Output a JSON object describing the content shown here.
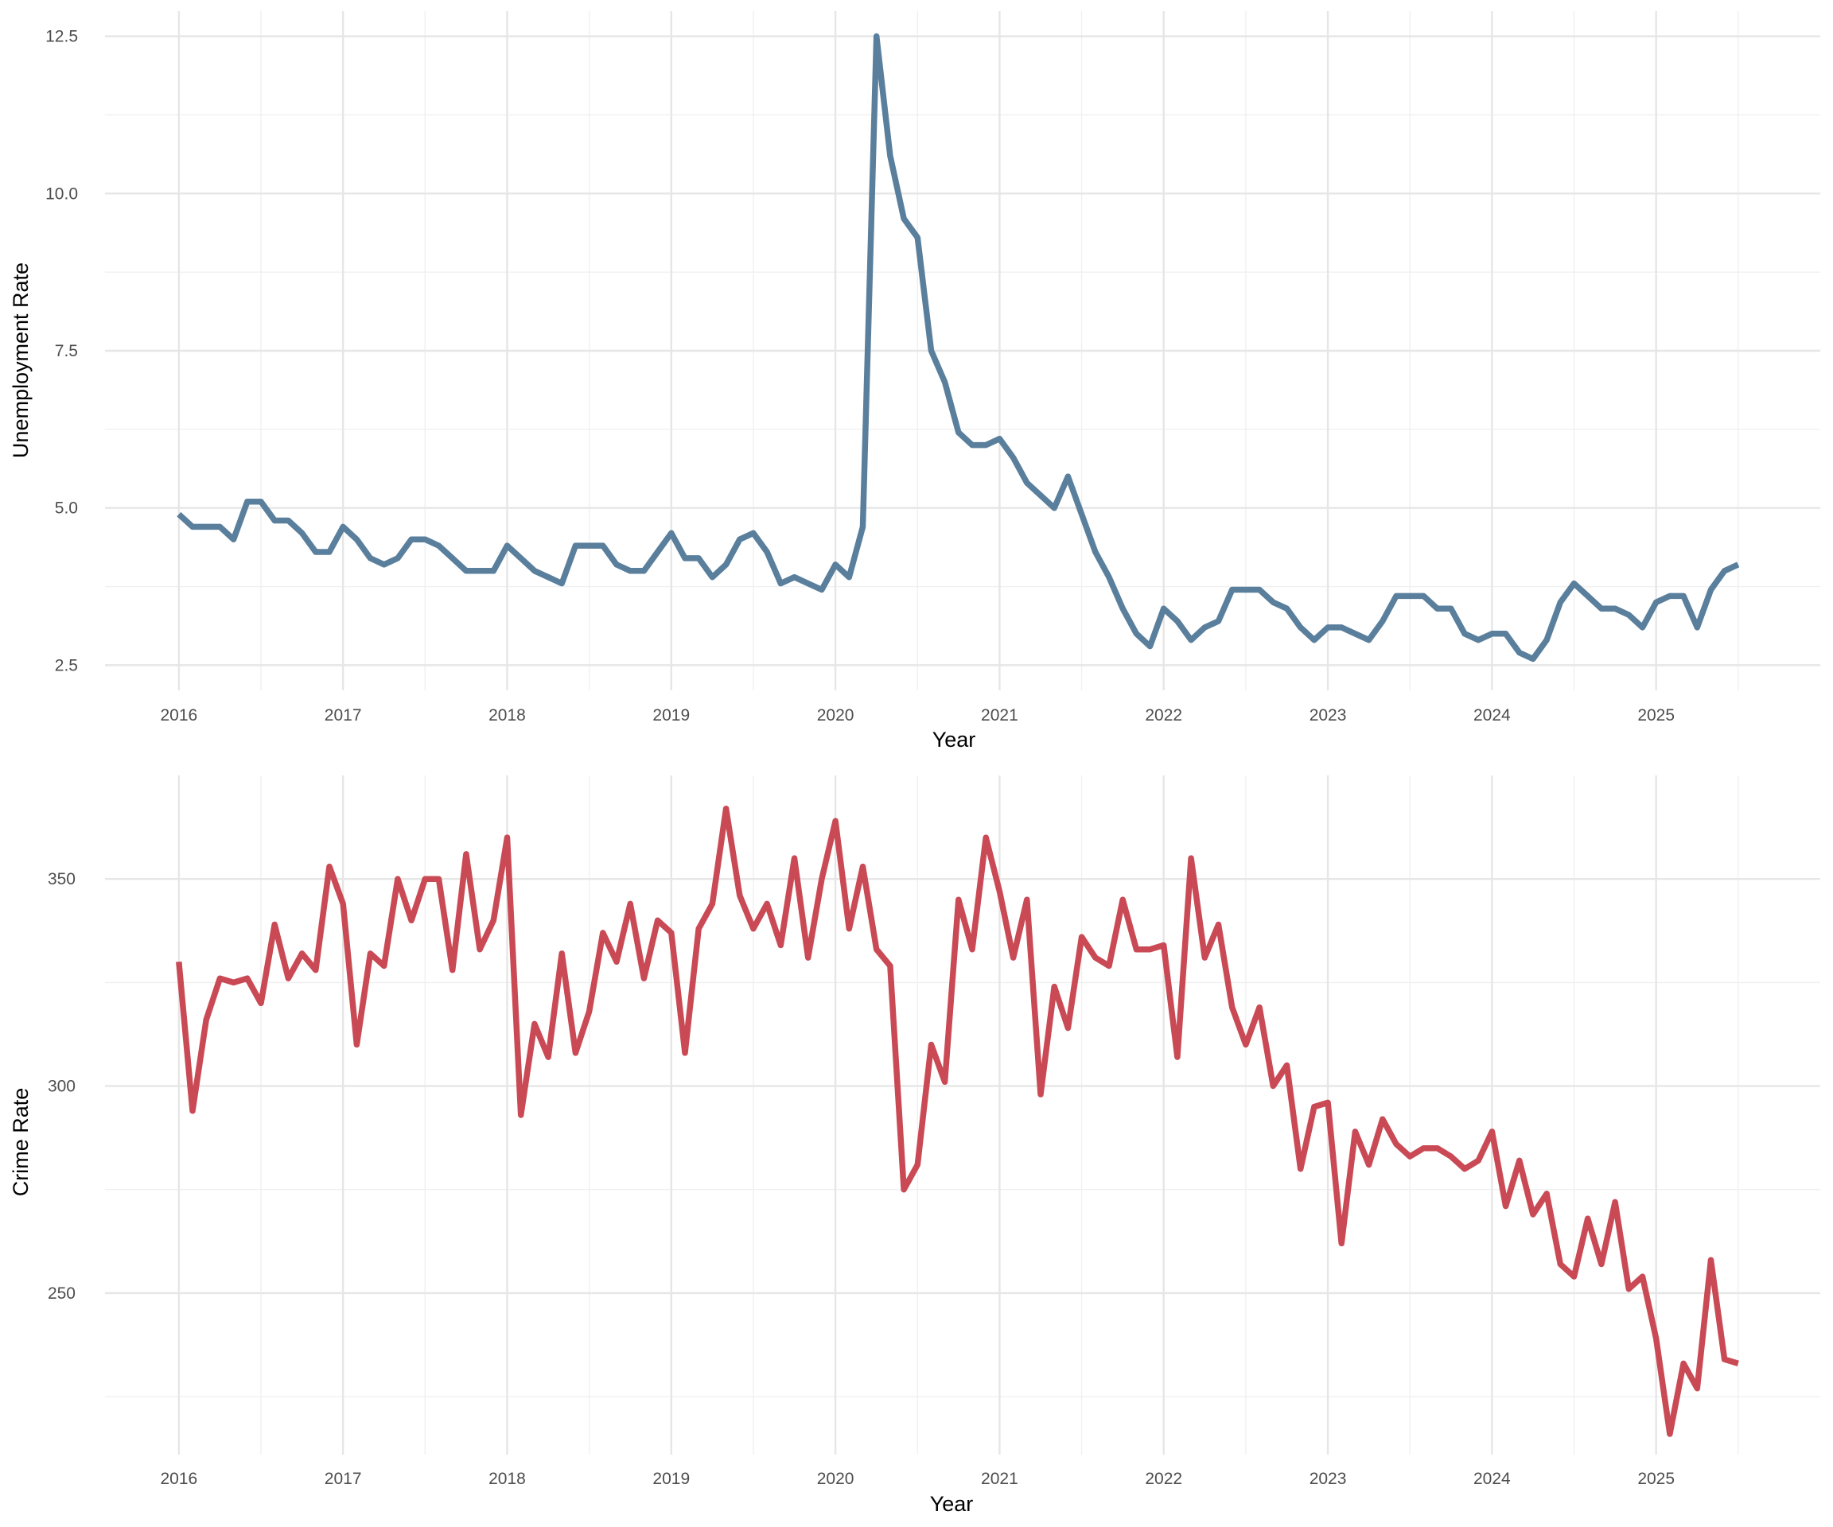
{
  "chart_data": [
    {
      "type": "line",
      "title": "",
      "xlabel": "Year",
      "ylabel": "Unemployment Rate",
      "xlim": [
        2015.55,
        2026.0
      ],
      "ylim": [
        2.1,
        12.9
      ],
      "x_ticks": [
        2016,
        2017,
        2018,
        2019,
        2020,
        2021,
        2022,
        2023,
        2024,
        2025
      ],
      "x_tick_labels": [
        "2016",
        "2017",
        "2018",
        "2019",
        "2020",
        "2021",
        "2022",
        "2023",
        "2024",
        "2025"
      ],
      "y_ticks": [
        2.5,
        5.0,
        7.5,
        10.0,
        12.5
      ],
      "y_tick_labels": [
        "2.5",
        "5.0",
        "7.5",
        "10.0",
        "12.5"
      ],
      "grid": true,
      "color": "#5A7F9C",
      "start": "2016-01",
      "frequency": "monthly",
      "values": [
        4.9,
        4.7,
        4.7,
        4.7,
        4.5,
        5.1,
        5.1,
        4.8,
        4.8,
        4.6,
        4.3,
        4.3,
        4.7,
        4.5,
        4.2,
        4.1,
        4.2,
        4.5,
        4.5,
        4.4,
        4.2,
        4.0,
        4.0,
        4.0,
        4.4,
        4.2,
        4.0,
        3.9,
        3.8,
        4.4,
        4.4,
        4.4,
        4.1,
        4.0,
        4.0,
        4.3,
        4.6,
        4.2,
        4.2,
        3.9,
        4.1,
        4.5,
        4.6,
        4.3,
        3.8,
        3.9,
        3.8,
        3.7,
        4.1,
        3.9,
        4.7,
        12.5,
        10.6,
        9.6,
        9.3,
        7.5,
        7.0,
        6.2,
        6.0,
        6.0,
        6.1,
        5.8,
        5.4,
        5.2,
        5.0,
        5.5,
        4.9,
        4.3,
        3.9,
        3.4,
        3.0,
        2.8,
        3.4,
        3.2,
        2.9,
        3.1,
        3.2,
        3.7,
        3.7,
        3.7,
        3.5,
        3.4,
        3.1,
        2.9,
        3.1,
        3.1,
        3.0,
        2.9,
        3.2,
        3.6,
        3.6,
        3.6,
        3.4,
        3.4,
        3.0,
        2.9,
        3.0,
        3.0,
        2.7,
        2.6,
        2.9,
        3.5,
        3.8,
        3.6,
        3.4,
        3.4,
        3.3,
        3.1,
        3.5,
        3.6,
        3.6,
        3.1,
        3.7,
        4.0,
        4.1
      ]
    },
    {
      "type": "line",
      "title": "",
      "xlabel": "Year",
      "ylabel": "Crime Rate",
      "xlim": [
        2015.55,
        2026.0
      ],
      "ylim": [
        211,
        375
      ],
      "x_ticks": [
        2016,
        2017,
        2018,
        2019,
        2020,
        2021,
        2022,
        2023,
        2024,
        2025
      ],
      "x_tick_labels": [
        "2016",
        "2017",
        "2018",
        "2019",
        "2020",
        "2021",
        "2022",
        "2023",
        "2024",
        "2025"
      ],
      "y_ticks": [
        250,
        300,
        350
      ],
      "y_tick_labels": [
        "250",
        "300",
        "350"
      ],
      "grid": true,
      "color": "#C94A55",
      "start": "2016-01",
      "frequency": "monthly",
      "values": [
        330,
        294,
        316,
        326,
        325,
        326,
        320,
        339,
        326,
        332,
        328,
        353,
        344,
        310,
        332,
        329,
        350,
        340,
        350,
        350,
        328,
        356,
        333,
        340,
        360,
        293,
        315,
        307,
        332,
        308,
        318,
        337,
        330,
        344,
        326,
        340,
        337,
        308,
        338,
        344,
        367,
        346,
        338,
        344,
        334,
        355,
        331,
        350,
        364,
        338,
        353,
        333,
        329,
        275,
        281,
        310,
        301,
        345,
        333,
        360,
        347,
        331,
        345,
        298,
        324,
        314,
        336,
        331,
        329,
        345,
        333,
        333,
        334,
        307,
        355,
        331,
        339,
        319,
        310,
        319,
        300,
        305,
        280,
        295,
        296,
        262,
        289,
        281,
        292,
        286,
        283,
        285,
        285,
        283,
        280,
        282,
        289,
        271,
        282,
        269,
        274,
        257,
        254,
        268,
        257,
        272,
        251,
        254,
        239,
        216,
        233,
        227,
        258,
        234,
        233
      ]
    }
  ]
}
